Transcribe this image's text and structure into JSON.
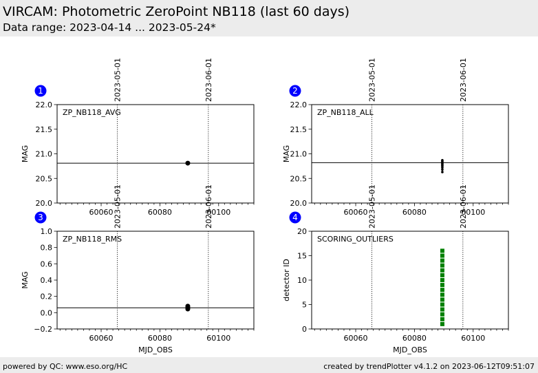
{
  "header": {
    "title": "VIRCAM: Photometric ZeroPoint NB118 (last 60 days)",
    "subtitle": "Data range: 2023-04-14 ... 2023-05-24*"
  },
  "footer": {
    "left": "powered by QC: www.eso.org/HC",
    "right": "created by trendPlotter v4.1.2 on 2023-06-12T09:51:07"
  },
  "colors": {
    "badge": "#0000ff",
    "marker": "#000000",
    "outlier": "#008000",
    "header_bg": "#ececec"
  },
  "chart_data": [
    {
      "type": "scatter",
      "panel_number": "1",
      "label": "ZP_NB118_AVG",
      "xlabel": "",
      "ylabel": "MAG",
      "xlim": [
        60045,
        60112
      ],
      "ylim": [
        20.0,
        22.0
      ],
      "xticks": [
        60060,
        60080,
        60100
      ],
      "yticks": [
        20.0,
        20.5,
        21.0,
        21.5,
        22.0
      ],
      "ytick_labels": [
        "20.0",
        "20.5",
        "21.0",
        "21.5",
        "22.0"
      ],
      "reference_line": 20.81,
      "date_markers": [
        {
          "x": 60065.5,
          "label": "2023-05-01"
        },
        {
          "x": 60096.5,
          "label": "2023-06-01"
        }
      ],
      "points": [
        {
          "x": 60089.5,
          "y": 20.81
        }
      ],
      "point_style": "dot"
    },
    {
      "type": "scatter",
      "panel_number": "2",
      "label": "ZP_NB118_ALL",
      "xlabel": "",
      "ylabel": "MAG",
      "xlim": [
        60045,
        60112
      ],
      "ylim": [
        20.0,
        22.0
      ],
      "xticks": [
        60060,
        60080,
        60100
      ],
      "yticks": [
        20.0,
        20.5,
        21.0,
        21.5,
        22.0
      ],
      "ytick_labels": [
        "20.0",
        "20.5",
        "21.0",
        "21.5",
        "22.0"
      ],
      "reference_line": 20.82,
      "date_markers": [
        {
          "x": 60065.5,
          "label": "2023-05-01"
        },
        {
          "x": 60096.5,
          "label": "2023-06-01"
        }
      ],
      "points": [
        {
          "x": 60089.5,
          "y": 20.87
        },
        {
          "x": 60089.5,
          "y": 20.85
        },
        {
          "x": 60089.5,
          "y": 20.83
        },
        {
          "x": 60089.5,
          "y": 20.81
        },
        {
          "x": 60089.5,
          "y": 20.79
        },
        {
          "x": 60089.5,
          "y": 20.77
        },
        {
          "x": 60089.5,
          "y": 20.75
        },
        {
          "x": 60089.5,
          "y": 20.72
        },
        {
          "x": 60089.5,
          "y": 20.68
        },
        {
          "x": 60089.5,
          "y": 20.63
        }
      ],
      "point_style": "small-dot"
    },
    {
      "type": "scatter",
      "panel_number": "3",
      "label": "ZP_NB118_RMS",
      "xlabel": "MJD_OBS",
      "ylabel": "MAG",
      "xlim": [
        60045,
        60112
      ],
      "ylim": [
        -0.2,
        1.0
      ],
      "xticks": [
        60060,
        60080,
        60100
      ],
      "yticks": [
        -0.2,
        0.0,
        0.2,
        0.4,
        0.6,
        0.8,
        1.0
      ],
      "ytick_labels": [
        "−0.2",
        "0.0",
        "0.2",
        "0.4",
        "0.6",
        "0.8",
        "1.0"
      ],
      "reference_line": 0.06,
      "date_markers": [
        {
          "x": 60065.5,
          "label": "2023-05-01"
        },
        {
          "x": 60096.5,
          "label": "2023-06-01"
        }
      ],
      "points": [
        {
          "x": 60089.5,
          "y": 0.08
        },
        {
          "x": 60089.5,
          "y": 0.06
        },
        {
          "x": 60089.5,
          "y": 0.045
        }
      ],
      "point_style": "dot"
    },
    {
      "type": "scatter",
      "panel_number": "4",
      "label": "SCORING_OUTLIERS",
      "xlabel": "MJD_OBS",
      "ylabel": "detector ID",
      "xlim": [
        60045,
        60112
      ],
      "ylim": [
        0,
        20
      ],
      "xticks": [
        60060,
        60080,
        60100
      ],
      "yticks": [
        0,
        5,
        10,
        15,
        20
      ],
      "ytick_labels": [
        "0",
        "5",
        "10",
        "15",
        "20"
      ],
      "reference_line": null,
      "date_markers": [
        {
          "x": 60065.5,
          "label": "2023-05-01"
        },
        {
          "x": 60096.5,
          "label": "2023-06-01"
        }
      ],
      "points": [
        {
          "x": 60089.5,
          "y": 1
        },
        {
          "x": 60089.5,
          "y": 2
        },
        {
          "x": 60089.5,
          "y": 3
        },
        {
          "x": 60089.5,
          "y": 4
        },
        {
          "x": 60089.5,
          "y": 5
        },
        {
          "x": 60089.5,
          "y": 6
        },
        {
          "x": 60089.5,
          "y": 7
        },
        {
          "x": 60089.5,
          "y": 8
        },
        {
          "x": 60089.5,
          "y": 9
        },
        {
          "x": 60089.5,
          "y": 10
        },
        {
          "x": 60089.5,
          "y": 11
        },
        {
          "x": 60089.5,
          "y": 12
        },
        {
          "x": 60089.5,
          "y": 13
        },
        {
          "x": 60089.5,
          "y": 14
        },
        {
          "x": 60089.5,
          "y": 15
        },
        {
          "x": 60089.5,
          "y": 16
        }
      ],
      "point_style": "green-square"
    }
  ]
}
